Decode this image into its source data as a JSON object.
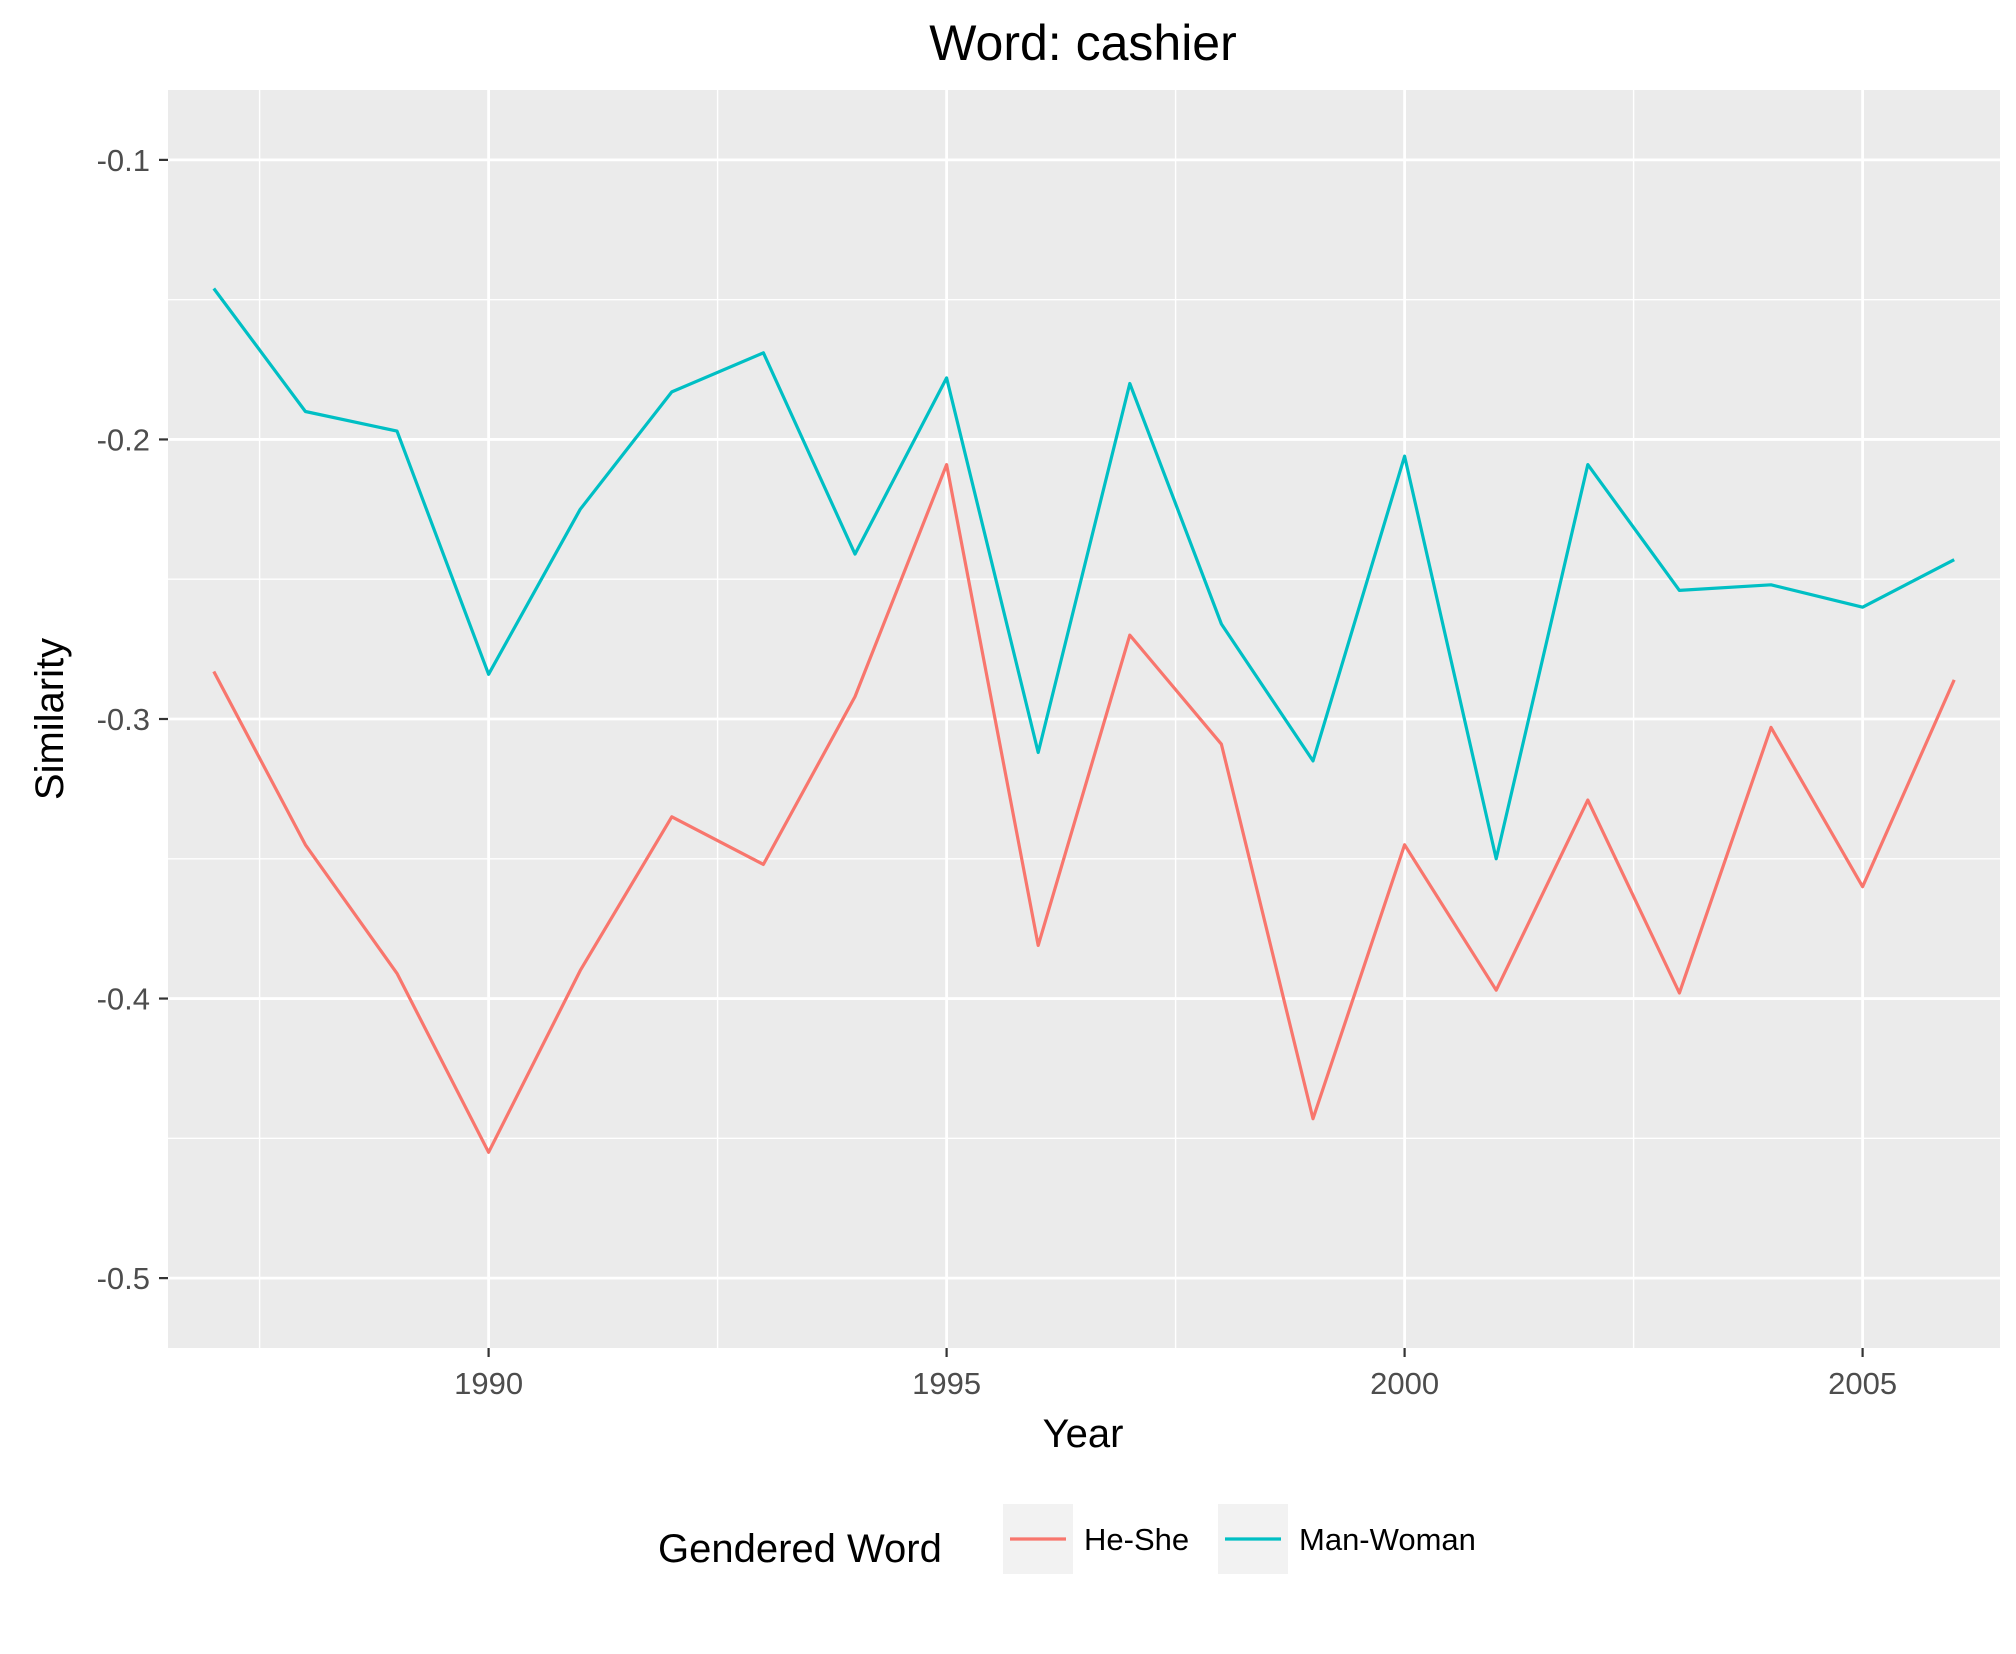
{
  "chart_data": {
    "type": "line",
    "title": "Word: cashier",
    "xlabel": "Year",
    "ylabel": "Similarity",
    "xlim": [
      1986.5,
      2006.5
    ],
    "ylim": [
      -0.525,
      -0.075
    ],
    "x_ticks": [
      1990,
      1995,
      2000,
      2005
    ],
    "y_ticks": [
      -0.1,
      -0.2,
      -0.3,
      -0.4,
      -0.5
    ],
    "x_tick_labels": [
      "1990",
      "1995",
      "2000",
      "2005"
    ],
    "y_tick_labels": [
      "-0.1",
      "-0.2",
      "-0.3",
      "-0.4",
      "-0.5"
    ],
    "grid": true,
    "legend": {
      "title": "Gendered Word",
      "position": "bottom"
    },
    "x": [
      1987,
      1988,
      1989,
      1990,
      1991,
      1992,
      1993,
      1994,
      1995,
      1996,
      1997,
      1998,
      1999,
      2000,
      2001,
      2002,
      2003,
      2004,
      2005,
      2006
    ],
    "series": [
      {
        "name": "He-She",
        "color": "#F8766D",
        "values": [
          -0.283,
          -0.345,
          -0.391,
          -0.455,
          -0.39,
          -0.335,
          -0.352,
          -0.292,
          -0.209,
          -0.381,
          -0.27,
          -0.309,
          -0.443,
          -0.345,
          -0.397,
          -0.329,
          -0.398,
          -0.303,
          -0.36,
          -0.286
        ]
      },
      {
        "name": "Man-Woman",
        "color": "#00BFC4",
        "values": [
          -0.146,
          -0.19,
          -0.197,
          -0.284,
          -0.225,
          -0.183,
          -0.169,
          -0.241,
          -0.178,
          -0.312,
          -0.18,
          -0.266,
          -0.315,
          -0.206,
          -0.35,
          -0.209,
          -0.254,
          -0.252,
          -0.26,
          -0.243
        ]
      }
    ]
  }
}
